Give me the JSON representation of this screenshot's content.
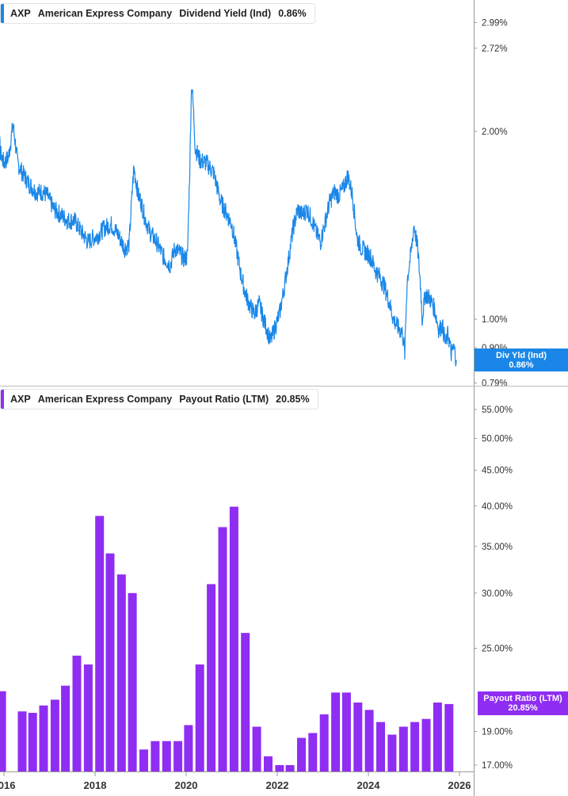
{
  "legend_top": {
    "ticker": "AXP",
    "company": "American Express Company",
    "metric": "Dividend Yield (Ind)",
    "value": "0.86%",
    "color": "#1a87e8"
  },
  "legend_bottom": {
    "ticker": "AXP",
    "company": "American Express Company",
    "metric": "Payout Ratio (LTM)",
    "value": "20.85%",
    "color": "#8f2df3"
  },
  "badge_top": {
    "label": "Div Yld (Ind)",
    "value": "0.86%",
    "color": "#1a87e8"
  },
  "badge_bottom": {
    "label": "Payout Ratio (LTM)",
    "value": "20.85%",
    "color": "#8f2df3"
  },
  "chart_data": [
    {
      "type": "line",
      "scale": "log",
      "series": [
        {
          "name": "Dividend Yield (Ind)",
          "x": [
            2015.75,
            2015.85,
            2015.92,
            2016.0,
            2016.1,
            2016.2,
            2016.3,
            2016.4,
            2016.55,
            2016.7,
            2016.85,
            2016.95,
            2017.0,
            2017.1,
            2017.25,
            2017.4,
            2017.55,
            2017.7,
            2017.85,
            2017.95,
            2018.05,
            2018.2,
            2018.35,
            2018.5,
            2018.65,
            2018.75,
            2018.85,
            2018.95,
            2019.0,
            2019.1,
            2019.2,
            2019.35,
            2019.5,
            2019.65,
            2019.75,
            2019.85,
            2019.95,
            2020.03,
            2020.08,
            2020.12,
            2020.17,
            2020.2,
            2020.3,
            2020.45,
            2020.6,
            2020.75,
            2020.9,
            2021.0,
            2021.1,
            2021.2,
            2021.3,
            2021.4,
            2021.5,
            2021.6,
            2021.7,
            2021.8,
            2021.85,
            2021.95,
            2022.05,
            2022.15,
            2022.25,
            2022.35,
            2022.45,
            2022.55,
            2022.65,
            2022.75,
            2022.85,
            2022.95,
            2023.05,
            2023.15,
            2023.25,
            2023.35,
            2023.45,
            2023.55,
            2023.65,
            2023.75,
            2023.85,
            2023.95,
            2024.05,
            2024.15,
            2024.25,
            2024.35,
            2024.45,
            2024.55,
            2024.65,
            2024.75,
            2024.8,
            2024.85,
            2024.95,
            2025.0,
            2025.08,
            2025.15,
            2025.18,
            2025.25,
            2025.35,
            2025.45,
            2025.55,
            2025.62,
            2025.7,
            2025.75,
            2025.82,
            2025.88,
            2025.93
          ],
          "y": [
            1.72,
            2.15,
            1.85,
            1.78,
            1.82,
            2.05,
            1.78,
            1.72,
            1.65,
            1.6,
            1.6,
            1.58,
            1.55,
            1.5,
            1.47,
            1.44,
            1.44,
            1.38,
            1.33,
            1.35,
            1.36,
            1.4,
            1.42,
            1.37,
            1.3,
            1.32,
            1.75,
            1.58,
            1.55,
            1.45,
            1.38,
            1.33,
            1.26,
            1.22,
            1.3,
            1.28,
            1.25,
            1.26,
            1.75,
            2.4,
            2.1,
            1.88,
            1.8,
            1.78,
            1.72,
            1.55,
            1.47,
            1.42,
            1.3,
            1.18,
            1.1,
            1.05,
            1.02,
            1.06,
            1.0,
            0.95,
            0.92,
            0.97,
            1.02,
            1.12,
            1.25,
            1.4,
            1.5,
            1.47,
            1.5,
            1.45,
            1.38,
            1.33,
            1.43,
            1.54,
            1.6,
            1.58,
            1.62,
            1.7,
            1.58,
            1.35,
            1.3,
            1.28,
            1.26,
            1.2,
            1.17,
            1.13,
            1.07,
            1.0,
            0.97,
            0.95,
            0.88,
            1.15,
            1.3,
            1.42,
            1.3,
            1.12,
            1.0,
            1.1,
            1.08,
            1.04,
            0.96,
            0.98,
            0.91,
            0.95,
            0.88,
            0.9,
            0.86
          ]
        }
      ],
      "yticks": [
        {
          "value": 2.99,
          "label": "2.99%"
        },
        {
          "value": 2.72,
          "label": "2.72%"
        },
        {
          "value": 2.0,
          "label": "2.00%"
        },
        {
          "value": 1.0,
          "label": "1.00%"
        },
        {
          "value": 0.9,
          "label": "0.90%"
        },
        {
          "value": 0.79,
          "label": "0.79%"
        }
      ]
    },
    {
      "type": "bar",
      "scale": "log",
      "series": [
        {
          "name": "Payout Ratio (LTM)",
          "x": [
            2015.95,
            2016.4,
            2016.63,
            2016.87,
            2017.12,
            2017.35,
            2017.6,
            2017.85,
            2018.1,
            2018.33,
            2018.58,
            2018.82,
            2019.07,
            2019.32,
            2019.57,
            2019.82,
            2020.05,
            2020.3,
            2020.55,
            2020.8,
            2021.05,
            2021.3,
            2021.55,
            2021.8,
            2022.05,
            2022.28,
            2022.53,
            2022.78,
            2023.03,
            2023.28,
            2023.52,
            2023.77,
            2024.02,
            2024.27,
            2024.52,
            2024.77,
            2025.02,
            2025.27,
            2025.52,
            2025.77
          ],
          "values": [
            21.7,
            20.3,
            20.2,
            20.7,
            21.1,
            22.1,
            24.4,
            23.7,
            38.7,
            34.2,
            31.9,
            30.0,
            17.9,
            18.4,
            18.4,
            18.4,
            19.4,
            23.7,
            30.9,
            37.3,
            39.9,
            26.3,
            19.3,
            17.5,
            17.0,
            17.0,
            18.6,
            18.9,
            20.1,
            21.6,
            21.6,
            20.9,
            20.4,
            19.6,
            18.8,
            19.3,
            19.6,
            19.8,
            20.9,
            20.8
          ]
        }
      ],
      "yticks": [
        {
          "value": 55,
          "label": "55.00%"
        },
        {
          "value": 50,
          "label": "50.00%"
        },
        {
          "value": 45,
          "label": "45.00%"
        },
        {
          "value": 40,
          "label": "40.00%"
        },
        {
          "value": 35,
          "label": "35.00%"
        },
        {
          "value": 30,
          "label": "30.00%"
        },
        {
          "value": 25,
          "label": "25.00%"
        },
        {
          "value": 19,
          "label": "19.00%"
        },
        {
          "value": 17,
          "label": "17.00%"
        }
      ]
    }
  ],
  "x_axis": {
    "ticks": [
      {
        "value": 2016,
        "label": "2016"
      },
      {
        "value": 2018,
        "label": "2018"
      },
      {
        "value": 2020,
        "label": "2020"
      },
      {
        "value": 2022,
        "label": "2022"
      },
      {
        "value": 2024,
        "label": "2024"
      },
      {
        "value": 2026,
        "label": "2026"
      }
    ]
  }
}
